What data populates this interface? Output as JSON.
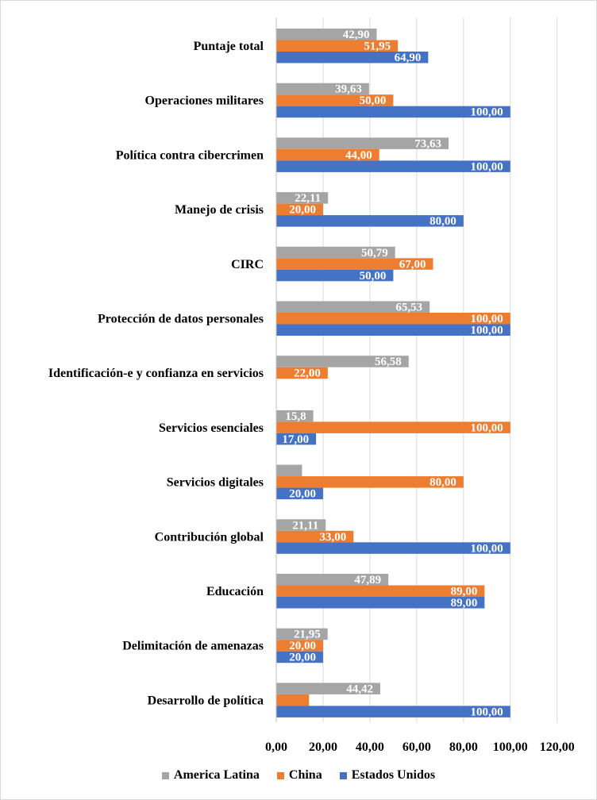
{
  "chart_data": {
    "type": "bar",
    "orientation": "horizontal",
    "title": "",
    "xlabel": "",
    "ylabel": "",
    "xlim": [
      0,
      120
    ],
    "xticks": [
      "0,00",
      "20,00",
      "40,00",
      "60,00",
      "80,00",
      "100,00",
      "120,00"
    ],
    "grid": true,
    "legend_position": "bottom",
    "categories": [
      "Puntaje total",
      "Operaciones militares",
      "Política contra cibercrimen",
      "Manejo de crisis",
      "CIRC",
      "Protección de datos personales",
      "Identificación-e y confianza en servicios",
      "Servicios esenciales",
      "Servicios digitales",
      "Contribución global",
      "Educación",
      "Delimitación de amenazas",
      "Desarrollo de política"
    ],
    "series": [
      {
        "name": "America Latina",
        "color": "#a5a5a5",
        "values": [
          42.9,
          39.63,
          73.63,
          22.11,
          50.79,
          65.53,
          56.58,
          15.8,
          11.0,
          21.11,
          47.89,
          21.95,
          44.42
        ],
        "labels": [
          "42,90",
          "39,63",
          "73,63",
          "22,11",
          "50,79",
          "65,53",
          "56,58",
          "15,8",
          "",
          "21,11",
          "47,89",
          "21,95",
          "44,42"
        ]
      },
      {
        "name": "China",
        "color": "#ed7d31",
        "values": [
          51.95,
          50.0,
          44.0,
          20.0,
          67.0,
          100.0,
          22.0,
          100.0,
          80.0,
          33.0,
          89.0,
          20.0,
          14.0
        ],
        "labels": [
          "51,95",
          "50,00",
          "44,00",
          "20,00",
          "67,00",
          "100,00",
          "22,00",
          "100,00",
          "80,00",
          "33,00",
          "89,00",
          "20,00",
          ""
        ]
      },
      {
        "name": "Estados Unidos",
        "color": "#4472c4",
        "values": [
          64.9,
          100.0,
          100.0,
          80.0,
          50.0,
          100.0,
          0,
          17.0,
          20.0,
          100.0,
          89.0,
          20.0,
          100.0
        ],
        "labels": [
          "64,90",
          "100,00",
          "100,00",
          "80,00",
          "50,00",
          "100,00",
          "",
          "17,00",
          "20,00",
          "100,00",
          "89,00",
          "20,00",
          "100,00"
        ]
      }
    ]
  }
}
